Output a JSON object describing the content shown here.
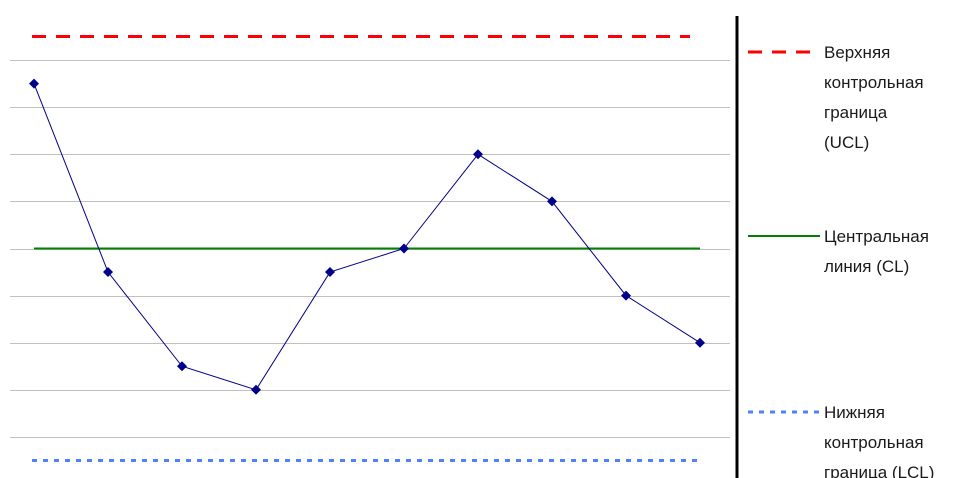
{
  "chart_data": {
    "type": "line",
    "title": "",
    "xlabel": "",
    "ylabel": "",
    "x": [
      1,
      2,
      3,
      4,
      5,
      6,
      7,
      8,
      9,
      10
    ],
    "series": [
      {
        "values": [
          8.5,
          4.5,
          2.5,
          2.0,
          4.5,
          5.0,
          7.0,
          6.0,
          4.0,
          3.0
        ],
        "color": "#00008b"
      }
    ],
    "control_lines": {
      "ucl": {
        "value": 9.5,
        "color": "#ff0000"
      },
      "cl": {
        "value": 5.0,
        "color": "#008000"
      },
      "lcl": {
        "value": 0.5,
        "color": "#4f81ff"
      }
    },
    "ylim": [
      0,
      10
    ],
    "grid": true,
    "legend_placement": "right",
    "legend": {
      "ucl": [
        "Верхняя",
        "контрольная",
        "граница",
        "(UCL)"
      ],
      "cl": [
        "Центральная",
        "линия (CL)"
      ],
      "lcl": [
        "Нижняя",
        "контрольная",
        "граница (LCL)"
      ]
    }
  }
}
